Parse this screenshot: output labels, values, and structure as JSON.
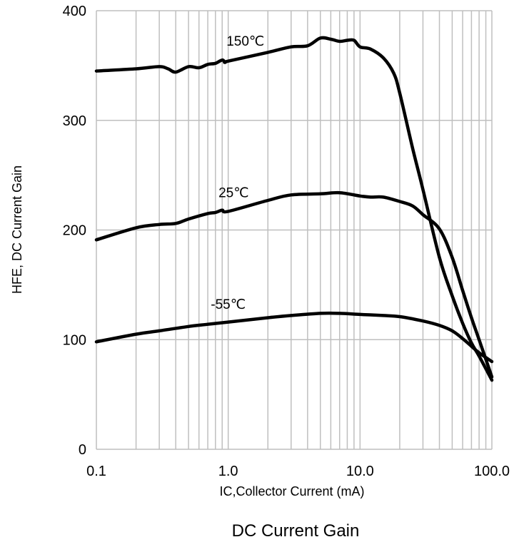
{
  "chart_data": {
    "type": "line",
    "title": "DC Current Gain",
    "xlabel": "IC,Collector Current (mA)",
    "ylabel": "HFE, DC Current Gain",
    "xscale": "log",
    "xlim": [
      0.1,
      100
    ],
    "ylim": [
      0,
      400
    ],
    "xticks": [
      0.1,
      1.0,
      10.0,
      100.0
    ],
    "xtick_labels": [
      "0.1",
      "1.0",
      "10.0",
      "100.0"
    ],
    "yticks": [
      0,
      100,
      200,
      300,
      400
    ],
    "ytick_labels": [
      "0",
      "100",
      "200",
      "300",
      "400"
    ],
    "grid": true,
    "series": [
      {
        "name": "150℃",
        "x": [
          0.1,
          0.2,
          0.3,
          0.35,
          0.4,
          0.5,
          0.6,
          0.7,
          0.8,
          0.9,
          0.95,
          1.0,
          2.0,
          3.0,
          4.0,
          5.0,
          6.0,
          7.0,
          8.0,
          9.0,
          10.0,
          12.0,
          15.0,
          18.0,
          20.0,
          25.0,
          30.0,
          40.0,
          50.0,
          60.0,
          70.0,
          80.0,
          100.0
        ],
        "y": [
          345,
          347,
          349,
          347,
          344,
          349,
          348,
          351,
          352,
          355,
          353,
          354,
          362,
          367,
          368,
          375,
          374,
          372,
          373,
          373,
          367,
          365,
          357,
          343,
          325,
          275,
          237,
          175,
          140,
          115,
          97,
          85,
          63
        ]
      },
      {
        "name": "25℃",
        "x": [
          0.1,
          0.2,
          0.3,
          0.4,
          0.5,
          0.7,
          0.8,
          0.9,
          1.0,
          2.0,
          3.0,
          5.0,
          7.0,
          10.0,
          12.0,
          15.0,
          20.0,
          25.0,
          30.0,
          40.0,
          50.0,
          60.0,
          70.0,
          80.0,
          100.0
        ],
        "y": [
          191,
          202,
          205,
          206,
          210,
          215,
          216,
          218,
          217,
          227,
          232,
          233,
          234,
          231,
          230,
          230,
          226,
          222,
          214,
          201,
          175,
          145,
          120,
          100,
          66
        ]
      },
      {
        "name": "-55℃",
        "x": [
          0.1,
          0.2,
          0.3,
          0.5,
          0.7,
          1.0,
          2.0,
          3.0,
          5.0,
          7.0,
          10.0,
          15.0,
          20.0,
          30.0,
          40.0,
          50.0,
          60.0,
          70.0,
          80.0,
          100.0
        ],
        "y": [
          98,
          105,
          108,
          112,
          114,
          116,
          120,
          122,
          124,
          124,
          123,
          122,
          121,
          117,
          113,
          108,
          101,
          94,
          88,
          80
        ]
      }
    ],
    "annotations": [
      {
        "text": "150℃",
        "x": 1.35,
        "y": 368
      },
      {
        "text": "25℃",
        "x": 1.1,
        "y": 230
      },
      {
        "text": "-55℃",
        "x": 1.0,
        "y": 128
      }
    ]
  }
}
